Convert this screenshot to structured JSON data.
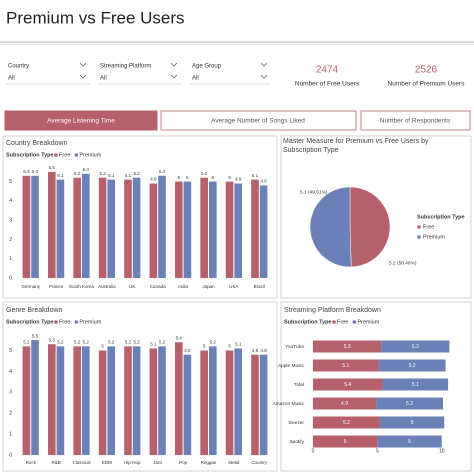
{
  "header": {
    "title": "Premium vs Free Users"
  },
  "filters": [
    {
      "label": "Country",
      "value": "All"
    },
    {
      "label": "Streaming Platform",
      "value": "All"
    },
    {
      "label": "Age Group",
      "value": "All"
    }
  ],
  "kpis": [
    {
      "value": 2474,
      "label": "Number of Free Users"
    },
    {
      "value": 2526,
      "label": "Number of Premium Users"
    }
  ],
  "tabs": [
    "Average Listening Time",
    "Average Number of Songs Liked",
    "Number of Respondents"
  ],
  "chart_data": [
    {
      "type": "bar",
      "title": "Country Breakdown",
      "legend_title": "Subscription Type",
      "categories": [
        "Germany",
        "France",
        "South Korea",
        "Australia",
        "UK",
        "Canada",
        "India",
        "Japan",
        "USA",
        "Brazil"
      ],
      "series": [
        {
          "name": "Free",
          "color": "#b5606a",
          "values": [
            5.3,
            5.5,
            5.2,
            5.2,
            5.1,
            4.9,
            5.0,
            5.2,
            5.0,
            5.1
          ]
        },
        {
          "name": "Premium",
          "color": "#6a80b6",
          "values": [
            5.3,
            5.1,
            5.4,
            5.1,
            5.2,
            5.3,
            5.0,
            5.0,
            4.9,
            4.8
          ]
        }
      ],
      "ylim": [
        0,
        5.6
      ],
      "yticks": [
        0,
        1,
        2,
        3,
        4,
        5
      ]
    },
    {
      "type": "pie",
      "title": "Master Measure for Premium vs Free Users by Subscription Type",
      "legend_title": "Subscription Type",
      "categories": [
        "Free",
        "Premium"
      ],
      "values": [
        5.1,
        5.2
      ],
      "value_labels": [
        "5.1 (49.51%)",
        "5.2 (50.49%)"
      ],
      "colors": [
        "#b5606a",
        "#6a80b6"
      ]
    },
    {
      "type": "bar",
      "title": "Genre Breakdown",
      "legend_title": "Subscription Type",
      "categories": [
        "Rock",
        "R&B",
        "Classical",
        "EDM",
        "Hip-Hop",
        "Jazz",
        "Pop",
        "Reggae",
        "Metal",
        "Country"
      ],
      "series": [
        {
          "name": "Free",
          "color": "#b5606a",
          "values": [
            5.2,
            5.3,
            5.2,
            5.0,
            5.2,
            5.1,
            5.4,
            5.0,
            5.0,
            4.8
          ]
        },
        {
          "name": "Premium",
          "color": "#6a80b6",
          "values": [
            5.5,
            5.2,
            5.2,
            5.2,
            5.2,
            5.2,
            4.8,
            5.2,
            5.1,
            4.8
          ]
        }
      ],
      "ylim": [
        0,
        5.6
      ],
      "yticks": [
        0,
        1,
        2,
        3,
        4,
        5
      ]
    },
    {
      "type": "hbar",
      "stacked": true,
      "title": "Streaming Platform Breakdown",
      "legend_title": "Subscription Type",
      "categories": [
        "YouTube",
        "Apple Music",
        "Tidal",
        "Amazon Music",
        "Deezer",
        "Spotify"
      ],
      "series": [
        {
          "name": "Free",
          "color": "#b5606a",
          "values": [
            5.3,
            5.1,
            5.4,
            4.9,
            5.2,
            5.0
          ]
        },
        {
          "name": "Premium",
          "color": "#6a80b6",
          "values": [
            5.3,
            5.2,
            5.1,
            5.2,
            5.0,
            5.0
          ]
        }
      ],
      "xlim": [
        0,
        10.8
      ],
      "xticks": [
        0,
        5,
        10
      ]
    }
  ]
}
